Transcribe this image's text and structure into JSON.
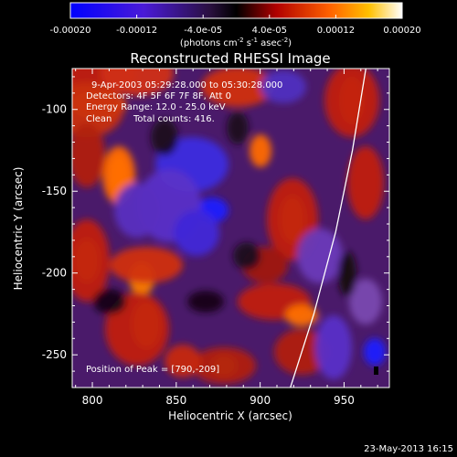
{
  "chart_data": {
    "type": "heatmap",
    "title": "Reconstructed RHESSI Image",
    "xlabel": "Heliocentric X (arcsec)",
    "ylabel": "Heliocentric Y (arcsec)",
    "xlim": [
      788,
      977
    ],
    "ylim": [
      -270,
      -75
    ],
    "x_ticks": [
      800,
      850,
      900,
      950
    ],
    "y_ticks": [
      -100,
      -150,
      -200,
      -250
    ],
    "colorbar": {
      "range": [
        -0.0002,
        0.0002
      ],
      "ticks": [
        "-0.00020",
        "-0.00012",
        "-4.0e-05",
        "4.0e-05",
        "0.00012",
        "0.00020"
      ],
      "tick_values": [
        -0.0002,
        -0.00012,
        -4e-05,
        4e-05,
        0.00012,
        0.0002
      ],
      "unit_main": "(photons cm",
      "unit_sup1": "-2",
      "unit_mid": " s",
      "unit_sup2": "-1",
      "unit_tail": " asec",
      "unit_sup3": "-2",
      "unit_end": ")"
    },
    "annotations": {
      "time": "9-Apr-2003 05:29:28.000 to 05:30:28.000",
      "detectors": "Detectors: 4F 5F 6F 7F 8F, Att 0",
      "energy": "Energy Range: 12.0 - 25.0 keV",
      "clean": "Clean",
      "counts": "Total counts: 416.",
      "peak": "Position of Peak = [790,-209]"
    },
    "limb": [
      [
        963,
        -75
      ],
      [
        955,
        -125
      ],
      [
        945,
        -175
      ],
      [
        932,
        -225
      ],
      [
        918,
        -270
      ]
    ],
    "peak_position": [
      790,
      -209
    ],
    "grid": false,
    "legend": "none"
  },
  "footer": {
    "date": "23-May-2013 16:15"
  }
}
